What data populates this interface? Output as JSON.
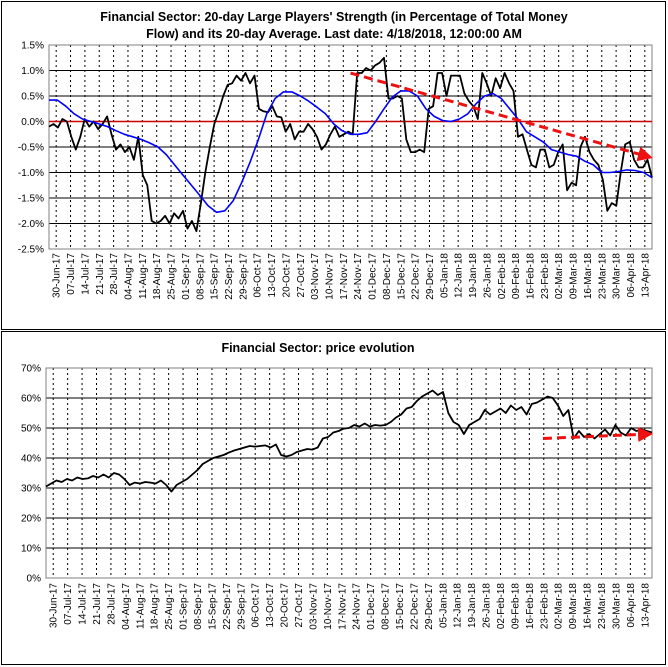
{
  "chart_data": [
    {
      "type": "line",
      "title_line1": "Financial Sector: 20-day Large Players' Strength (in Percentage of Total Money",
      "title_line2": "Flow) and its 20-day Average. Last date: 4/18/2018, 12:00:00 AM",
      "y_unit": "%",
      "ylim": [
        -2.5,
        1.5
      ],
      "y_ticks": [
        "1.5%",
        "1.0%",
        "0.5%",
        "0.0%",
        "-0.5%",
        "-1.0%",
        "-1.5%",
        "-2.0%",
        "-2.5%"
      ],
      "x_tick_labels": [
        "30-Jun-17",
        "07-Jul-17",
        "14-Jul-17",
        "21-Jul-17",
        "28-Jul-17",
        "04-Aug-17",
        "11-Aug-17",
        "18-Aug-17",
        "25-Aug-17",
        "01-Sep-17",
        "08-Sep-17",
        "15-Sep-17",
        "22-Sep-17",
        "29-Sep-17",
        "06-Oct-17",
        "13-Oct-17",
        "20-Oct-17",
        "27-Oct-17",
        "03-Nov-17",
        "10-Nov-17",
        "17-Nov-17",
        "24-Nov-17",
        "01-Dec-17",
        "08-Dec-17",
        "15-Dec-17",
        "22-Dec-17",
        "29-Dec-17",
        "05-Jan-18",
        "12-Jan-18",
        "19-Jan-18",
        "26-Jan-18",
        "02-Feb-18",
        "09-Feb-18",
        "16-Feb-18",
        "23-Feb-18",
        "02-Mar-18",
        "09-Mar-18",
        "16-Mar-18",
        "23-Mar-18",
        "30-Mar-18",
        "06-Apr-18",
        "13-Apr-18"
      ],
      "grid": true,
      "reference_line": {
        "y": 0,
        "color": "#cc0000"
      },
      "series": [
        {
          "color": "#000000",
          "values": [
            -0.1,
            -0.05,
            -0.12,
            0.05,
            0.0,
            -0.3,
            -0.55,
            -0.3,
            0.05,
            -0.1,
            0.0,
            -0.15,
            -0.05,
            0.1,
            -0.25,
            -0.55,
            -0.45,
            -0.6,
            -0.5,
            -0.75,
            -0.3,
            -1.05,
            -1.25,
            -1.95,
            -2.0,
            -1.95,
            -1.85,
            -2.0,
            -1.8,
            -1.9,
            -1.75,
            -2.1,
            -1.95,
            -2.15,
            -1.6,
            -1.0,
            -0.5,
            -0.05,
            0.2,
            0.5,
            0.72,
            0.75,
            0.9,
            0.8,
            0.95,
            0.75,
            0.9,
            0.25,
            0.2,
            0.18,
            0.3,
            0.1,
            0.08,
            -0.2,
            -0.05,
            -0.35,
            -0.2,
            -0.2,
            -0.05,
            -0.15,
            -0.3,
            -0.55,
            -0.45,
            -0.25,
            -0.1,
            -0.3,
            -0.25,
            -0.2,
            -0.25,
            0.95,
            0.95,
            1.05,
            1.0,
            1.1,
            1.15,
            1.25,
            0.45,
            0.45,
            0.5,
            0.45,
            -0.35,
            -0.6,
            -0.6,
            -0.55,
            -0.6,
            0.25,
            0.3,
            0.95,
            0.95,
            0.5,
            0.9,
            0.9,
            0.9,
            0.55,
            0.4,
            0.3,
            0.05,
            0.95,
            0.75,
            0.5,
            0.85,
            0.65,
            0.95,
            0.75,
            0.6,
            -0.3,
            -0.25,
            -0.55,
            -0.85,
            -0.9,
            -0.55,
            -0.55,
            -0.9,
            -0.85,
            -0.6,
            -0.45,
            -1.35,
            -1.2,
            -1.25,
            -0.5,
            -0.3,
            -0.6,
            -0.75,
            -0.85,
            -1.15,
            -1.75,
            -1.6,
            -1.65,
            -1.0,
            -0.45,
            -0.4,
            -0.75,
            -0.9,
            -0.9,
            -0.75,
            -1.1
          ]
        },
        {
          "color": "#0000ff",
          "values": [
            0.42,
            0.42,
            0.3,
            0.15,
            0.05,
            0.0,
            -0.05,
            -0.1,
            -0.18,
            -0.25,
            -0.3,
            -0.35,
            -0.42,
            -0.5,
            -0.65,
            -0.85,
            -1.05,
            -1.25,
            -1.45,
            -1.65,
            -1.78,
            -1.75,
            -1.55,
            -1.2,
            -0.8,
            -0.35,
            0.15,
            0.45,
            0.58,
            0.58,
            0.5,
            0.4,
            0.28,
            0.15,
            -0.05,
            -0.18,
            -0.25,
            -0.25,
            -0.22,
            0.0,
            0.25,
            0.48,
            0.6,
            0.6,
            0.5,
            0.25,
            0.1,
            0.02,
            0.0,
            0.05,
            0.15,
            0.35,
            0.5,
            0.55,
            0.45,
            0.25,
            0.05,
            -0.2,
            -0.3,
            -0.4,
            -0.55,
            -0.6,
            -0.65,
            -0.68,
            -0.78,
            -0.85,
            -1.0,
            -1.0,
            -0.98,
            -0.95,
            -0.96,
            -1.0,
            -1.1
          ]
        }
      ],
      "trend_arrow": {
        "from": [
          0.5,
          0.95
        ],
        "to": [
          1.0,
          -0.7
        ],
        "color": "#ee1111"
      }
    },
    {
      "type": "line",
      "title": "Financial Sector: price evolution",
      "ylim": [
        0,
        70
      ],
      "y_ticks": [
        "70%",
        "60%",
        "50%",
        "40%",
        "30%",
        "20%",
        "10%",
        "0%"
      ],
      "x_tick_labels": [
        "30-Jun-17",
        "07-Jul-17",
        "14-Jul-17",
        "21-Jul-17",
        "28-Jul-17",
        "04-Aug-17",
        "11-Aug-17",
        "18-Aug-17",
        "25-Aug-17",
        "01-Sep-17",
        "08-Sep-17",
        "15-Sep-17",
        "22-Sep-17",
        "29-Sep-17",
        "06-Oct-17",
        "13-Oct-17",
        "20-Oct-17",
        "27-Oct-17",
        "03-Nov-17",
        "10-Nov-17",
        "17-Nov-17",
        "24-Nov-17",
        "01-Dec-17",
        "08-Dec-17",
        "15-Dec-17",
        "22-Dec-17",
        "29-Dec-17",
        "05-Jan-18",
        "12-Jan-18",
        "19-Jan-18",
        "26-Jan-18",
        "02-Feb-18",
        "09-Feb-18",
        "16-Feb-18",
        "23-Feb-18",
        "02-Mar-18",
        "09-Mar-18",
        "16-Mar-18",
        "23-Mar-18",
        "30-Mar-18",
        "06-Apr-18",
        "13-Apr-18"
      ],
      "grid": true,
      "series": [
        {
          "color": "#000000",
          "values": [
            30.5,
            31.5,
            32.5,
            32.0,
            33.0,
            32.5,
            33.5,
            33.0,
            33.2,
            34.0,
            33.5,
            34.5,
            33.5,
            35.0,
            34.5,
            33.0,
            31.0,
            31.8,
            31.5,
            32.0,
            31.8,
            31.5,
            32.5,
            31.0,
            28.8,
            31.0,
            32.0,
            33.0,
            34.5,
            36.0,
            38.0,
            39.0,
            40.0,
            40.5,
            41.0,
            41.8,
            42.5,
            43.0,
            43.5,
            44.0,
            43.8,
            44.0,
            44.2,
            43.5,
            44.5,
            41.0,
            40.5,
            41.0,
            42.0,
            42.5,
            43.0,
            42.8,
            43.5,
            46.5,
            47.0,
            48.5,
            49.0,
            49.8,
            50.0,
            51.0,
            50.5,
            51.5,
            50.5,
            51.0,
            50.8,
            51.0,
            52.0,
            53.5,
            54.5,
            56.5,
            57.0,
            59.0,
            60.5,
            61.5,
            62.5,
            61.0,
            62.0,
            55.0,
            52.0,
            51.0,
            48.0,
            51.0,
            52.0,
            53.0,
            56.0,
            54.5,
            55.5,
            56.5,
            55.0,
            57.5,
            56.0,
            57.0,
            54.5,
            58.0,
            58.5,
            59.5,
            60.5,
            60.0,
            57.5,
            54.0,
            56.0,
            46.5,
            49.0,
            47.0,
            48.0,
            46.5,
            48.0,
            49.5,
            47.5,
            51.0,
            48.5,
            47.5,
            50.0,
            49.0,
            49.5,
            49.0,
            48.5
          ]
        }
      ],
      "trend_arrow": {
        "from": [
          0.82,
          46.5
        ],
        "to": [
          1.0,
          48.0
        ],
        "color": "#ee1111"
      }
    }
  ]
}
